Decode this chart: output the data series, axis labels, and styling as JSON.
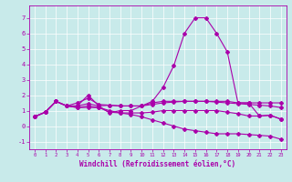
{
  "xlabel": "Windchill (Refroidissement éolien,°C)",
  "background_color": "#c8eaea",
  "line_color": "#aa00aa",
  "xlim": [
    -0.5,
    23.5
  ],
  "ylim": [
    -1.5,
    7.8
  ],
  "xticks": [
    0,
    1,
    2,
    3,
    4,
    5,
    6,
    7,
    8,
    9,
    10,
    11,
    12,
    13,
    14,
    15,
    16,
    17,
    18,
    19,
    20,
    21,
    22,
    23
  ],
  "yticks": [
    -1,
    0,
    1,
    2,
    3,
    4,
    5,
    6,
    7
  ],
  "series": [
    [
      0.6,
      0.9,
      1.6,
      1.3,
      1.3,
      2.0,
      1.3,
      0.85,
      1.0,
      1.0,
      1.3,
      1.6,
      2.5,
      3.9,
      6.0,
      7.0,
      7.0,
      6.0,
      4.8,
      1.5,
      1.5,
      0.65,
      0.7,
      0.45
    ],
    [
      0.6,
      0.9,
      1.6,
      1.3,
      1.3,
      1.45,
      1.3,
      1.35,
      1.3,
      1.3,
      1.3,
      1.5,
      1.6,
      1.6,
      1.6,
      1.6,
      1.6,
      1.6,
      1.6,
      1.5,
      1.5,
      1.5,
      1.5,
      1.5
    ],
    [
      0.6,
      0.9,
      1.6,
      1.3,
      1.2,
      1.2,
      1.2,
      0.9,
      0.85,
      0.85,
      0.85,
      0.9,
      1.0,
      1.0,
      1.0,
      1.0,
      1.0,
      1.0,
      0.9,
      0.8,
      0.65,
      0.65,
      0.7,
      0.45
    ],
    [
      0.6,
      0.9,
      1.6,
      1.3,
      1.5,
      1.8,
      1.4,
      1.35,
      1.3,
      1.3,
      1.3,
      1.4,
      1.5,
      1.55,
      1.6,
      1.6,
      1.6,
      1.55,
      1.5,
      1.45,
      1.4,
      1.35,
      1.3,
      1.2
    ],
    [
      0.6,
      0.9,
      1.6,
      1.3,
      1.2,
      1.3,
      1.2,
      1.0,
      0.85,
      0.75,
      0.6,
      0.4,
      0.2,
      0.0,
      -0.2,
      -0.3,
      -0.4,
      -0.5,
      -0.5,
      -0.5,
      -0.55,
      -0.6,
      -0.65,
      -0.85
    ]
  ]
}
